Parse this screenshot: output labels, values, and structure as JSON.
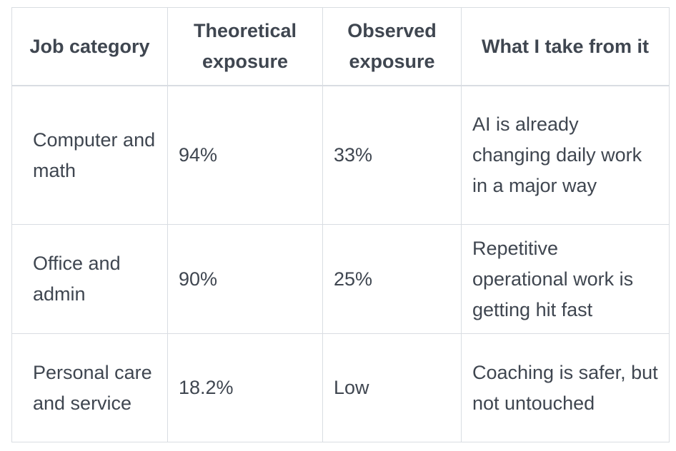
{
  "table": {
    "headers": [
      "Job category",
      "Theoretical exposure",
      "Observed exposure",
      "What I take from it"
    ],
    "rows": [
      [
        "Computer and math",
        "94%",
        "33%",
        "AI is already changing daily work in a major way"
      ],
      [
        "Office and admin",
        "90%",
        "25%",
        "Repetitive operational work is getting hit fast"
      ],
      [
        "Personal care and service",
        "18.2%",
        "Low",
        "Coaching is safer, but not untouched"
      ]
    ]
  }
}
